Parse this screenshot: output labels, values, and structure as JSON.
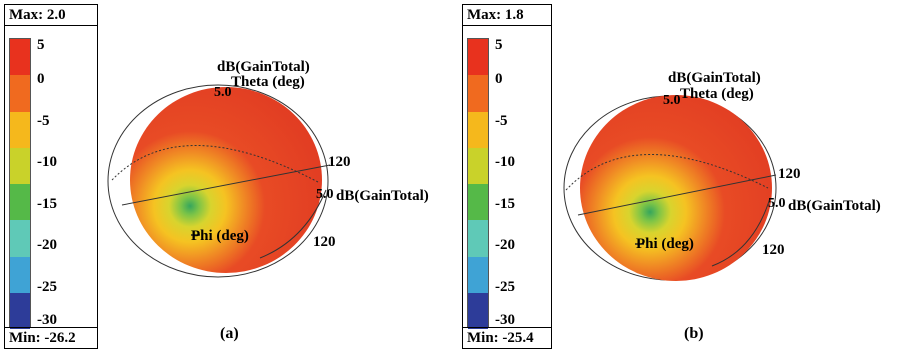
{
  "chart_data": [
    {
      "type": "heatmap",
      "caption": "(a)",
      "max_label": "Max: 2.0",
      "min_label": "Min: -26.2",
      "max": 2.0,
      "min": -26.2,
      "colorbar": {
        "ticks": [
          "5",
          "0",
          "-5",
          "-10",
          "-15",
          "-20",
          "-25",
          "-30"
        ],
        "colors": [
          "#e8321e",
          "#f06a1f",
          "#f5b81c",
          "#c9d22a",
          "#55b948",
          "#5fc9b7",
          "#3fa3d5",
          "#2d3c99"
        ]
      },
      "annotations": {
        "gain_top": "dB(GainTotal)",
        "theta": "Theta (deg)",
        "ring_top": "5.0",
        "gain_right": "dB(GainTotal)",
        "ring_right": "5.0",
        "deg_upper": "120",
        "deg_lower": "120",
        "phi": "Phi (deg)"
      }
    },
    {
      "type": "heatmap",
      "caption": "(b)",
      "max_label": "Max: 1.8",
      "min_label": "Min: -25.4",
      "max": 1.8,
      "min": -25.4,
      "colorbar": {
        "ticks": [
          "5",
          "0",
          "-5",
          "-10",
          "-15",
          "-20",
          "-25",
          "-30"
        ],
        "colors": [
          "#e8321e",
          "#f06a1f",
          "#f5b81c",
          "#c9d22a",
          "#55b948",
          "#5fc9b7",
          "#3fa3d5",
          "#2d3c99"
        ]
      },
      "annotations": {
        "gain_top": "dB(GainTotal)",
        "theta": "Theta (deg)",
        "ring_top": "5.0",
        "gain_right": "dB(GainTotal)",
        "ring_right": "5.0",
        "deg_upper": "120",
        "deg_lower": "120",
        "phi": "Phi (deg)"
      }
    }
  ]
}
